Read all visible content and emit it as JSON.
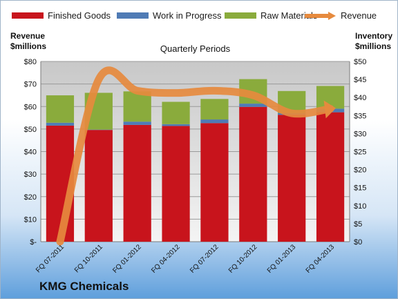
{
  "chart_data": {
    "type": "bar",
    "title": "Quarterly Periods",
    "categories": [
      "FQ 07-2011",
      "FQ 10-2011",
      "FQ 01-2012",
      "FQ 04-2012",
      "FQ 07-2012",
      "FQ 10-2012",
      "FQ 01-2013",
      "FQ 04-2013"
    ],
    "series": [
      {
        "name": "Finished Goods",
        "axis": "right",
        "values": [
          32.2,
          31.0,
          32.4,
          32.1,
          32.9,
          37.4,
          35.2,
          35.9
        ]
      },
      {
        "name": "Work in Progress",
        "axis": "right",
        "values": [
          0.8,
          0.1,
          0.9,
          0.5,
          1.0,
          0.9,
          0.5,
          1.0
        ]
      },
      {
        "name": "Raw Materials",
        "axis": "right",
        "values": [
          7.6,
          10.2,
          8.4,
          6.2,
          5.7,
          6.8,
          6.1,
          6.3
        ]
      },
      {
        "name": "Revenue",
        "axis": "left",
        "type": "line",
        "values": [
          -10,
          72,
          67,
          66,
          67,
          65,
          57,
          59
        ]
      }
    ],
    "ylabel_left": "Revenue\n$millions",
    "ylabel_right": "Inventory\n$millions",
    "ylim_left": [
      0,
      80
    ],
    "ylim_right": [
      0,
      50
    ],
    "yticks_left": [
      "$-",
      "$10",
      "$20",
      "$30",
      "$40",
      "$50",
      "$60",
      "$70",
      "$80"
    ],
    "yticks_right": [
      "$0",
      "$5",
      "$10",
      "$15",
      "$20",
      "$25",
      "$30",
      "$35",
      "$40",
      "$45",
      "$50"
    ],
    "stacked": true,
    "grid": true,
    "legend_position": "top",
    "colors": {
      "Finished Goods": "#c8141c",
      "Work in Progress": "#4f7bb5",
      "Raw Materials": "#8aab3c",
      "Revenue": "#e68a3e"
    }
  },
  "legend": {
    "finished_goods": "Finished Goods",
    "work_in_progress": "Work in Progress",
    "raw_materials": "Raw Materials",
    "revenue": "Revenue"
  },
  "axis_titles": {
    "left": "Revenue\n$millions",
    "right": "Inventory\n$millions"
  },
  "company": "KMG Chemicals"
}
